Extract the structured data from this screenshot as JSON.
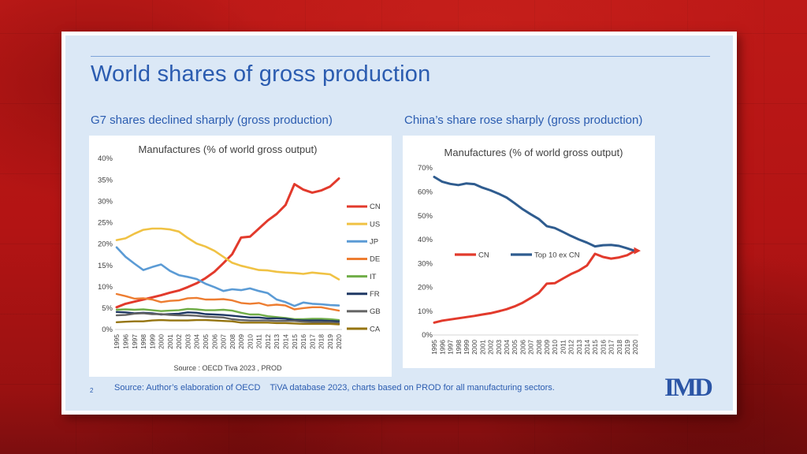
{
  "slide": {
    "title": "World shares of gross production",
    "page_number": "2",
    "footer_source": "Source: Author’s elaboration of OECD    TiVA database 2023, charts based on PROD for all manufacturing sectors.",
    "logo": "IMD"
  },
  "left_section": {
    "heading": "G7 shares declined sharply (gross production)"
  },
  "right_section": {
    "heading": "China’s share rose sharply (gross production)"
  },
  "colors": {
    "accent_blue": "#2b5cb0",
    "slide_background": "#dbe8f6",
    "panel_background": "#ffffff",
    "chart_text": "#404040",
    "axis_line": "#d6d6d6",
    "background_red": "#b21414"
  },
  "chart_data": [
    {
      "type": "line",
      "title": "Manufactures (% of world gross output)",
      "x": [
        "1995",
        "1996",
        "1997",
        "1998",
        "1999",
        "2000",
        "2001",
        "2002",
        "2003",
        "2004",
        "2005",
        "2006",
        "2007",
        "2008",
        "2009",
        "2010",
        "2011",
        "2012",
        "2013",
        "2014",
        "2015",
        "2016",
        "2017",
        "2018",
        "2019",
        "2020"
      ],
      "ylim": [
        0,
        40
      ],
      "yticks": [
        0,
        5,
        10,
        15,
        20,
        25,
        30,
        35,
        40
      ],
      "ytick_format": "percent",
      "grid": false,
      "legend_position": "right",
      "source_note": "Source : OECD Tiva 2023 , PROD",
      "series": [
        {
          "name": "CN",
          "color": "#e23a2c",
          "width": 3,
          "values": [
            5.2,
            6.0,
            6.5,
            7.0,
            7.5,
            8.0,
            8.6,
            9.1,
            9.9,
            10.8,
            12.0,
            13.5,
            15.5,
            17.6,
            21.5,
            21.7,
            23.6,
            25.5,
            27.0,
            29.1,
            34.0,
            32.7,
            32.0,
            32.5,
            33.4,
            35.3
          ]
        },
        {
          "name": "US",
          "color": "#f0c244",
          "width": 2.6,
          "values": [
            20.9,
            21.3,
            22.4,
            23.3,
            23.6,
            23.6,
            23.4,
            22.9,
            21.4,
            20.1,
            19.4,
            18.4,
            17.0,
            15.6,
            14.9,
            14.4,
            13.9,
            13.8,
            13.5,
            13.3,
            13.2,
            13.0,
            13.3,
            13.1,
            12.9,
            11.7
          ]
        },
        {
          "name": "JP",
          "color": "#5b9bd5",
          "width": 2.6,
          "values": [
            19.2,
            17.0,
            15.4,
            13.9,
            14.6,
            15.2,
            13.7,
            12.7,
            12.3,
            11.8,
            10.7,
            9.9,
            9.0,
            9.4,
            9.2,
            9.6,
            9.0,
            8.5,
            7.0,
            6.4,
            5.5,
            6.3,
            6.0,
            5.9,
            5.7,
            5.6
          ]
        },
        {
          "name": "DE",
          "color": "#ed7d31",
          "width": 2.4,
          "values": [
            8.3,
            7.8,
            7.2,
            7.3,
            7.0,
            6.4,
            6.7,
            6.8,
            7.3,
            7.4,
            7.0,
            7.0,
            7.1,
            6.8,
            6.2,
            6.0,
            6.2,
            5.6,
            5.8,
            5.6,
            4.7,
            5.0,
            5.2,
            5.2,
            4.8,
            4.4
          ]
        },
        {
          "name": "IT",
          "color": "#70ad47",
          "width": 2.4,
          "values": [
            4.6,
            4.7,
            4.6,
            4.7,
            4.5,
            4.3,
            4.4,
            4.5,
            4.8,
            4.7,
            4.5,
            4.5,
            4.6,
            4.4,
            3.9,
            3.5,
            3.5,
            3.1,
            2.9,
            2.7,
            2.4,
            2.4,
            2.5,
            2.5,
            2.4,
            2.2
          ]
        },
        {
          "name": "FR",
          "color": "#1f3864",
          "width": 2.4,
          "values": [
            4.1,
            4.0,
            3.8,
            3.9,
            3.8,
            3.5,
            3.6,
            3.7,
            4.0,
            3.9,
            3.6,
            3.5,
            3.4,
            3.2,
            3.0,
            2.8,
            2.8,
            2.6,
            2.6,
            2.5,
            2.2,
            2.1,
            2.1,
            2.1,
            2.0,
            1.9
          ]
        },
        {
          "name": "GB",
          "color": "#636363",
          "width": 2.4,
          "values": [
            3.3,
            3.4,
            3.7,
            3.8,
            3.6,
            3.6,
            3.4,
            3.3,
            3.3,
            3.2,
            3.0,
            2.9,
            2.8,
            2.4,
            2.2,
            2.1,
            2.1,
            2.1,
            2.0,
            2.0,
            2.0,
            1.8,
            1.7,
            1.7,
            1.7,
            1.5
          ]
        },
        {
          "name": "CA",
          "color": "#95740f",
          "width": 2.4,
          "values": [
            1.7,
            1.8,
            1.9,
            1.9,
            2.1,
            2.2,
            2.1,
            2.1,
            2.1,
            2.2,
            2.2,
            2.1,
            2.0,
            1.9,
            1.6,
            1.6,
            1.6,
            1.6,
            1.5,
            1.5,
            1.4,
            1.3,
            1.3,
            1.3,
            1.3,
            1.2
          ]
        }
      ]
    },
    {
      "type": "line",
      "title": "Manufactures (% of world gross output)",
      "x": [
        "1995",
        "1996",
        "1997",
        "1998",
        "1999",
        "2000",
        "2001",
        "2002",
        "2003",
        "2004",
        "2005",
        "2006",
        "2007",
        "2008",
        "2009",
        "2010",
        "2011",
        "2012",
        "2013",
        "2014",
        "2015",
        "2016",
        "2017",
        "2018",
        "2019",
        "2020"
      ],
      "ylim": [
        0,
        70
      ],
      "yticks": [
        0,
        10,
        20,
        30,
        40,
        50,
        60,
        70
      ],
      "ytick_format": "percent",
      "grid": false,
      "legend_position": "inside",
      "end_arrow": true,
      "series": [
        {
          "name": "CN",
          "color": "#e23a2c",
          "width": 3,
          "values": [
            5.2,
            6.0,
            6.5,
            7.0,
            7.5,
            8.0,
            8.6,
            9.1,
            9.9,
            10.8,
            12.0,
            13.5,
            15.5,
            17.6,
            21.5,
            21.7,
            23.6,
            25.5,
            27.0,
            29.1,
            34.0,
            32.7,
            32.0,
            32.5,
            33.4,
            35.3
          ]
        },
        {
          "name": "Top 10 ex CN",
          "color": "#2f5c8f",
          "width": 3,
          "values": [
            66.2,
            64.2,
            63.3,
            62.8,
            63.5,
            63.2,
            61.7,
            60.6,
            59.2,
            57.6,
            55.2,
            52.7,
            50.6,
            48.6,
            45.6,
            44.8,
            43.2,
            41.5,
            40.0,
            38.7,
            37.1,
            37.6,
            37.7,
            37.3,
            36.3,
            35.2
          ]
        }
      ]
    }
  ]
}
